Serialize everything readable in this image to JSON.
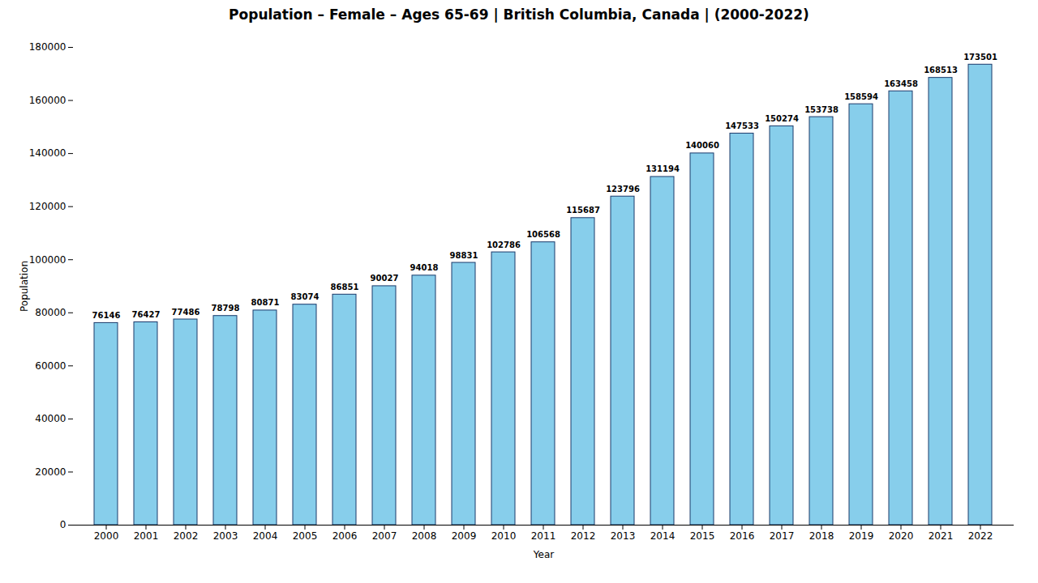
{
  "chart_data": {
    "type": "bar",
    "title": "Population – Female – Ages 65-69 | British Columbia, Canada |  (2000-2022)",
    "xlabel": "Year",
    "ylabel": "Population",
    "categories": [
      "2000",
      "2001",
      "2002",
      "2003",
      "2004",
      "2005",
      "2006",
      "2007",
      "2008",
      "2009",
      "2010",
      "2011",
      "2012",
      "2013",
      "2014",
      "2015",
      "2016",
      "2017",
      "2018",
      "2019",
      "2020",
      "2021",
      "2022"
    ],
    "values": [
      76146,
      76427,
      77486,
      78798,
      80871,
      83074,
      86851,
      90027,
      94018,
      98831,
      102786,
      106568,
      115687,
      123796,
      131194,
      140060,
      147533,
      150274,
      153738,
      158594,
      163458,
      168513,
      173501
    ],
    "color": "#87ceeb",
    "ylim": [
      0,
      180000
    ],
    "yticks": [
      0,
      20000,
      40000,
      60000,
      80000,
      100000,
      120000,
      140000,
      160000,
      180000
    ],
    "data_labels": true,
    "grid": false
  }
}
